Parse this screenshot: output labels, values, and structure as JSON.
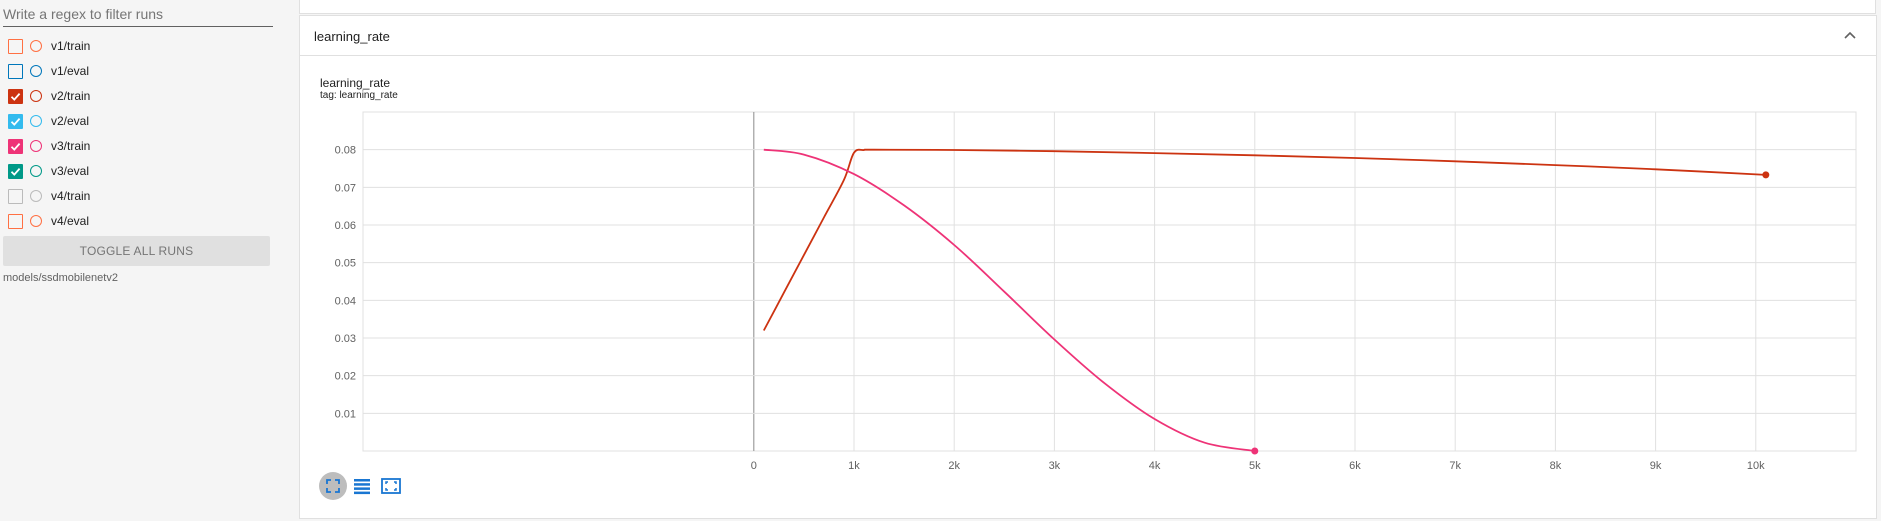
{
  "sidebar": {
    "filter_placeholder": "Write a regex to filter runs",
    "runs": [
      {
        "label": "v1/train",
        "color": "#ff7043",
        "checked": false
      },
      {
        "label": "v1/eval",
        "color": "#0077bb",
        "checked": false
      },
      {
        "label": "v2/train",
        "color": "#cc3311",
        "checked": true
      },
      {
        "label": "v2/eval",
        "color": "#33bbee",
        "checked": true
      },
      {
        "label": "v3/train",
        "color": "#ee3377",
        "checked": true
      },
      {
        "label": "v3/eval",
        "color": "#009988",
        "checked": true
      },
      {
        "label": "v4/train",
        "color": "#bbbbbb",
        "checked": false
      },
      {
        "label": "v4/eval",
        "color": "#ff7043",
        "checked": false
      }
    ],
    "toggle_label": "TOGGLE ALL RUNS",
    "logdir": "models/ssdmobilenetv2"
  },
  "card": {
    "title": "learning_rate",
    "collapse_icon": "chevron-up-icon"
  },
  "chart": {
    "title": "learning_rate",
    "tag": "tag: learning_rate",
    "toolbar_icons": [
      "fit-domain-icon",
      "data-table-icon",
      "expand-icon"
    ]
  },
  "chart_data": {
    "type": "line",
    "title": "learning_rate",
    "xlabel": "",
    "ylabel": "",
    "xlim": [
      -3900,
      11000
    ],
    "ylim": [
      0,
      0.09
    ],
    "xticks": [
      0,
      1000,
      2000,
      3000,
      4000,
      5000,
      6000,
      7000,
      8000,
      9000,
      10000
    ],
    "xtick_labels": [
      "0",
      "1k",
      "2k",
      "3k",
      "4k",
      "5k",
      "6k",
      "7k",
      "8k",
      "9k",
      "10k"
    ],
    "yticks": [
      0.01,
      0.02,
      0.03,
      0.04,
      0.05,
      0.06,
      0.07,
      0.08
    ],
    "ytick_labels": [
      "0.01",
      "0.02",
      "0.03",
      "0.04",
      "0.05",
      "0.06",
      "0.07",
      "0.08"
    ],
    "grid": true,
    "series": [
      {
        "name": "v2/train",
        "color": "#cc3311",
        "x": [
          100,
          300,
          500,
          700,
          900,
          1000,
          1100,
          1200,
          2000,
          3000,
          4000,
          5000,
          6000,
          7000,
          8000,
          9000,
          10100
        ],
        "y": [
          0.032,
          0.042,
          0.052,
          0.062,
          0.072,
          0.0792,
          0.0799,
          0.08,
          0.0799,
          0.0796,
          0.0791,
          0.0785,
          0.0778,
          0.0769,
          0.0759,
          0.0748,
          0.0733
        ]
      },
      {
        "name": "v3/train",
        "color": "#ee3377",
        "x": [
          100,
          500,
          1000,
          1500,
          2000,
          2500,
          3000,
          3500,
          4000,
          4500,
          5000
        ],
        "y": [
          0.08,
          0.0787,
          0.0735,
          0.0652,
          0.0547,
          0.0423,
          0.0296,
          0.018,
          0.0085,
          0.0022,
          0.0
        ]
      }
    ]
  }
}
